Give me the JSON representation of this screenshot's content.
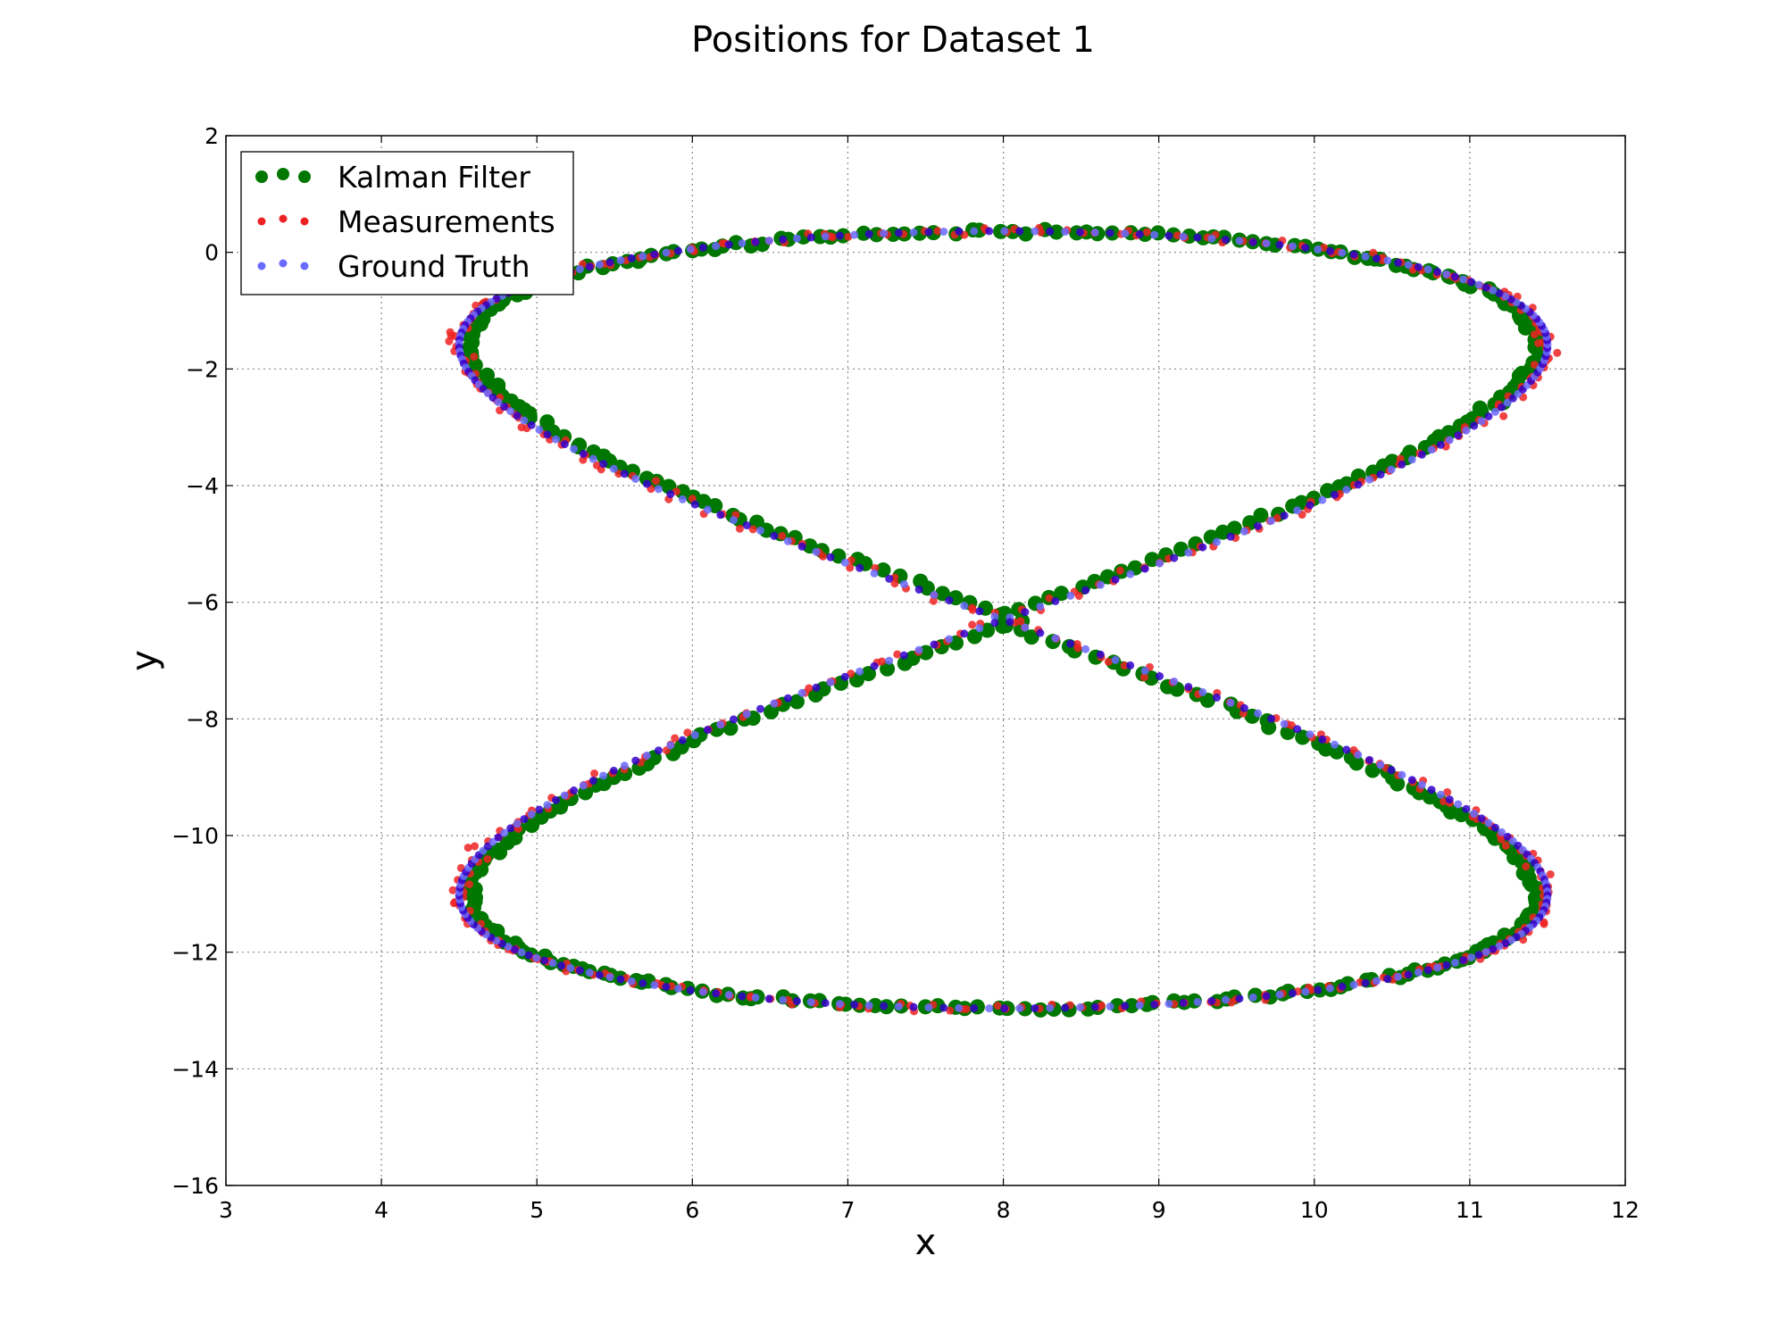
{
  "chart_data": {
    "type": "scatter",
    "title": "Positions for Dataset 1",
    "xlabel": "x",
    "ylabel": "y",
    "xlim": [
      3,
      12
    ],
    "ylim": [
      -16,
      2
    ],
    "xticks": [
      3,
      4,
      5,
      6,
      7,
      8,
      9,
      10,
      11,
      12
    ],
    "yticks": [
      2,
      0,
      -2,
      -4,
      -6,
      -8,
      -10,
      -12,
      -14,
      -16
    ],
    "ytick_labels": [
      "2",
      "0",
      "−2",
      "−4",
      "−6",
      "−8",
      "−10",
      "−12",
      "−14",
      "−16"
    ],
    "xtick_labels": [
      "3",
      "4",
      "5",
      "6",
      "7",
      "8",
      "9",
      "10",
      "11",
      "12"
    ],
    "grid": true,
    "legend_position": "top-left",
    "curve_shape": "figure-eight",
    "center": [
      8.0,
      -6.3
    ],
    "x_amplitude": 2.8,
    "y_amplitude": 6.8,
    "series": [
      {
        "name": "Kalman Filter",
        "color": "#007700",
        "noise": 0.05,
        "x_offset": -0.1,
        "marker": "large"
      },
      {
        "name": "Measurements",
        "color": "#ee2222",
        "noise": 0.09,
        "x_offset": 0.0,
        "marker": "small"
      },
      {
        "name": "Ground Truth",
        "color": "#6a6aff",
        "noise": 0.0,
        "x_offset": 0.0,
        "marker": "small"
      }
    ],
    "overlay_color": "#3300cc",
    "n_points": 450
  }
}
